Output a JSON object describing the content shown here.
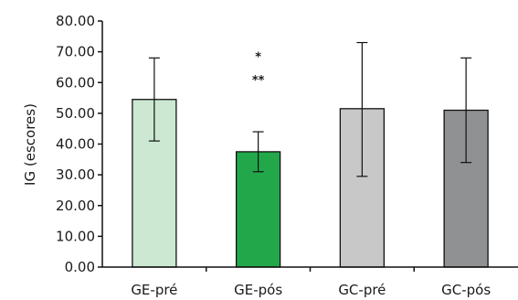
{
  "chart_data": {
    "type": "bar",
    "title": "",
    "xlabel": "",
    "ylabel": "IG (escores)",
    "ylim": [
      0,
      80
    ],
    "yticks": [
      "0.00",
      "10.00",
      "20.00",
      "30.00",
      "40.00",
      "50.00",
      "60.00",
      "70.00",
      "80.00"
    ],
    "categories": [
      "GE-pré",
      "GE-pós",
      "GC-pré",
      "GC-pós"
    ],
    "values": [
      54.5,
      37.5,
      51.5,
      51.0
    ],
    "error_low": [
      41.0,
      31.0,
      29.5,
      34.0
    ],
    "error_high": [
      68.0,
      44.0,
      73.0,
      68.0
    ],
    "colors": [
      "#cce8d2",
      "#22a84a",
      "#c8c8c8",
      "#8f9193"
    ],
    "annotations": [
      {
        "category": "GE-pós",
        "text": "*",
        "y": 68.5
      },
      {
        "category": "GE-pós",
        "text": "**",
        "y": 61.0
      }
    ],
    "grid": false
  }
}
